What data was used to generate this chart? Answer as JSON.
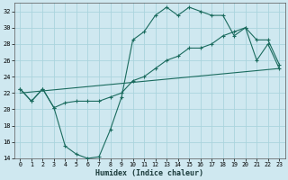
{
  "xlabel": "Humidex (Indice chaleur)",
  "bg_color": "#cfe8f0",
  "line_color": "#1a6b5e",
  "grid_color": "#aad4dd",
  "xlim": [
    -0.5,
    23.5
  ],
  "ylim": [
    14,
    33
  ],
  "xticks": [
    0,
    1,
    2,
    3,
    4,
    5,
    6,
    7,
    8,
    9,
    10,
    11,
    12,
    13,
    14,
    15,
    16,
    17,
    18,
    19,
    20,
    21,
    22,
    23
  ],
  "yticks": [
    14,
    16,
    18,
    20,
    22,
    24,
    26,
    28,
    30,
    32
  ],
  "line1_x": [
    0,
    1,
    2,
    3,
    4,
    5,
    6,
    7,
    8,
    9,
    10,
    11,
    12,
    13,
    14,
    15,
    16,
    17,
    18,
    19,
    20,
    21,
    22,
    23
  ],
  "line1_y": [
    22.5,
    21.0,
    22.5,
    20.2,
    15.5,
    14.5,
    14.0,
    14.2,
    17.5,
    21.5,
    28.5,
    29.5,
    31.5,
    32.5,
    31.5,
    32.5,
    32.0,
    31.5,
    31.5,
    29.0,
    30.0,
    26.0,
    28.0,
    25.0
  ],
  "line2_x": [
    0,
    1,
    2,
    3,
    4,
    5,
    6,
    7,
    8,
    9,
    10,
    11,
    12,
    13,
    14,
    15,
    16,
    17,
    18,
    19,
    20,
    21,
    22,
    23
  ],
  "line2_y": [
    22.5,
    21.0,
    22.5,
    20.2,
    20.8,
    21.0,
    21.0,
    21.0,
    21.5,
    22.0,
    23.5,
    24.0,
    25.0,
    26.0,
    26.5,
    27.5,
    27.5,
    28.0,
    29.0,
    29.5,
    30.0,
    28.5,
    28.5,
    25.5
  ],
  "line3_x": [
    0,
    23
  ],
  "line3_y": [
    22.0,
    25.0
  ]
}
